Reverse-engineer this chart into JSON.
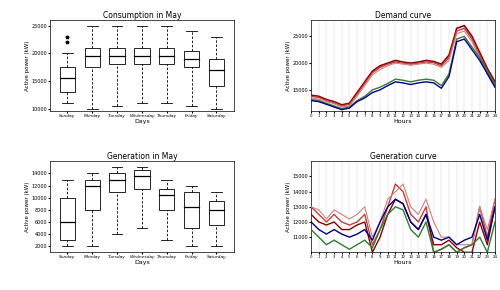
{
  "consumption_title": "Consumption in May",
  "generation_title": "Generation in May",
  "demand_title": "Demand curve",
  "gen_curve_title": "Generation curve",
  "days": [
    "Sunday",
    "Monday",
    "Tuesday",
    "Wednesday",
    "Thursday",
    "Friday",
    "Saturday"
  ],
  "ylabel_box": "Active power (kW)",
  "xlabel_box": "Days",
  "ylabel_curve": "Active power (kW)",
  "xlabel_curve": "Hours",
  "consumption_boxes": {
    "Sunday": {
      "whislo": 11000,
      "q1": 13000,
      "med": 15500,
      "q3": 17500,
      "whishi": 20000,
      "fliers": [
        22000,
        23000
      ]
    },
    "Monday": {
      "whislo": 10000,
      "q1": 17500,
      "med": 19500,
      "q3": 21000,
      "whishi": 25000,
      "fliers": []
    },
    "Tuesday": {
      "whislo": 10500,
      "q1": 18000,
      "med": 19500,
      "q3": 21000,
      "whishi": 25000,
      "fliers": []
    },
    "Wednesday": {
      "whislo": 11000,
      "q1": 18000,
      "med": 19500,
      "q3": 21000,
      "whishi": 25000,
      "fliers": []
    },
    "Thursday": {
      "whislo": 11000,
      "q1": 18000,
      "med": 19500,
      "q3": 21000,
      "whishi": 25000,
      "fliers": []
    },
    "Friday": {
      "whislo": 10500,
      "q1": 17500,
      "med": 19000,
      "q3": 20500,
      "whishi": 24000,
      "fliers": []
    },
    "Saturday": {
      "whislo": 10000,
      "q1": 14000,
      "med": 17000,
      "q3": 19000,
      "whishi": 23000,
      "fliers": []
    }
  },
  "generation_boxes": {
    "Sunday": {
      "whislo": 2000,
      "q1": 3000,
      "med": 6000,
      "q3": 10000,
      "whishi": 13000,
      "fliers": []
    },
    "Monday": {
      "whislo": 2000,
      "q1": 8000,
      "med": 12000,
      "q3": 13000,
      "whishi": 14000,
      "fliers": []
    },
    "Tuesday": {
      "whislo": 4000,
      "q1": 11000,
      "med": 13000,
      "q3": 14000,
      "whishi": 15000,
      "fliers": []
    },
    "Wednesday": {
      "whislo": 5000,
      "q1": 11500,
      "med": 13500,
      "q3": 14500,
      "whishi": 15000,
      "fliers": []
    },
    "Thursday": {
      "whislo": 3000,
      "q1": 8000,
      "med": 10500,
      "q3": 11500,
      "whishi": 13000,
      "fliers": []
    },
    "Friday": {
      "whislo": 2000,
      "q1": 5000,
      "med": 8500,
      "q3": 11000,
      "whishi": 12000,
      "fliers": []
    },
    "Saturday": {
      "whislo": 2000,
      "q1": 5500,
      "med": 8000,
      "q3": 9500,
      "whishi": 11000,
      "fliers": []
    }
  },
  "hours": [
    0,
    1,
    2,
    3,
    4,
    5,
    6,
    7,
    8,
    9,
    10,
    11,
    12,
    13,
    14,
    15,
    16,
    17,
    18,
    19,
    20,
    21,
    22,
    23,
    24
  ],
  "demand_curves": {
    "c1": [
      14000,
      13800,
      13200,
      12800,
      12200,
      12500,
      14500,
      16500,
      18500,
      19500,
      20000,
      20500,
      20200,
      20000,
      20200,
      20500,
      20300,
      19800,
      21500,
      26500,
      27000,
      25000,
      22000,
      19000,
      16500
    ],
    "c2": [
      13800,
      13600,
      13000,
      12600,
      12000,
      12300,
      14200,
      16200,
      18200,
      19200,
      19800,
      20200,
      20000,
      19800,
      20000,
      20200,
      20100,
      19500,
      21000,
      26000,
      26500,
      24500,
      21500,
      18500,
      16000
    ],
    "c3": [
      13500,
      13300,
      12800,
      12400,
      11800,
      12000,
      13800,
      15800,
      17800,
      18800,
      19500,
      20000,
      19800,
      19600,
      19800,
      20000,
      19800,
      19200,
      20500,
      25500,
      26000,
      24000,
      21000,
      18000,
      15500
    ],
    "c4": [
      13200,
      13000,
      12500,
      12000,
      11500,
      11800,
      13000,
      13800,
      15000,
      15500,
      16200,
      17000,
      16800,
      16500,
      16800,
      17000,
      16800,
      15800,
      18000,
      24500,
      25000,
      23000,
      21000,
      18500,
      16000
    ],
    "c5": [
      13000,
      12800,
      12300,
      11800,
      11300,
      11600,
      12800,
      13500,
      14500,
      15000,
      15800,
      16500,
      16300,
      16000,
      16300,
      16500,
      16300,
      15300,
      17500,
      24000,
      24500,
      22500,
      20500,
      18000,
      15500
    ]
  },
  "demand_colors": [
    "#8B0000",
    "#C04040",
    "#D08080",
    "#3A7A3A",
    "#00008B"
  ],
  "demand_lws": [
    1.2,
    1.0,
    0.8,
    1.0,
    1.0
  ],
  "gen_curves": {
    "g1": [
      13000,
      12500,
      12000,
      12500,
      12000,
      11800,
      12000,
      12500,
      10500,
      11500,
      13000,
      14500,
      14000,
      12500,
      12000,
      13000,
      10000,
      10200,
      10500,
      10000,
      10300,
      10500,
      13000,
      11000,
      13500
    ],
    "g2": [
      12500,
      12000,
      11800,
      12000,
      11500,
      11500,
      11800,
      12000,
      10000,
      11000,
      12500,
      13500,
      13200,
      12000,
      11500,
      12500,
      10500,
      10500,
      10800,
      10300,
      10000,
      10000,
      12000,
      10500,
      13000
    ],
    "g3": [
      13000,
      12800,
      12200,
      12800,
      12500,
      12200,
      12500,
      13000,
      11000,
      12000,
      13500,
      14000,
      14500,
      13000,
      12500,
      13500,
      12000,
      11000,
      11000,
      10500,
      10500,
      10500,
      13000,
      11500,
      13500
    ],
    "g4": [
      11500,
      11000,
      10500,
      10800,
      10500,
      10200,
      10500,
      10800,
      10300,
      11500,
      12500,
      13000,
      12800,
      11500,
      11000,
      12000,
      10000,
      10200,
      10500,
      10000,
      10300,
      10500,
      11000,
      10000,
      12000
    ],
    "g5": [
      12000,
      11500,
      11200,
      11500,
      11200,
      11000,
      11200,
      11500,
      10800,
      12000,
      13000,
      13500,
      13200,
      12000,
      11500,
      12500,
      11000,
      10800,
      11000,
      10500,
      10800,
      11000,
      12500,
      10800,
      13000
    ]
  },
  "gen_colors": [
    "#C04040",
    "#8B0000",
    "#D08080",
    "#2E7D32",
    "#000080"
  ],
  "gen_lws": [
    1.0,
    1.0,
    0.8,
    1.0,
    1.0
  ],
  "consumption_ylim": [
    9500,
    26000
  ],
  "consumption_yticks": [
    10000,
    15000,
    20000,
    25000
  ],
  "generation_ylim": [
    1000,
    16000
  ],
  "generation_yticks": [
    2000,
    4000,
    6000,
    8000,
    10000,
    12000,
    14000
  ],
  "demand_ylim": [
    11000,
    28000
  ],
  "demand_yticks": [
    15000,
    20000,
    25000
  ],
  "gen_curve_ylim": [
    10000,
    16000
  ],
  "gen_curve_yticks": [
    11000,
    12000,
    13000,
    14000,
    15000
  ],
  "hour_ticks": [
    0,
    1,
    2,
    3,
    4,
    5,
    6,
    7,
    8,
    9,
    10,
    11,
    12,
    13,
    14,
    15,
    16,
    17,
    18,
    19,
    20,
    21,
    22,
    23,
    24
  ]
}
